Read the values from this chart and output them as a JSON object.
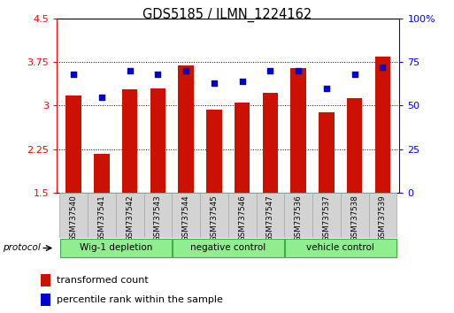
{
  "title": "GDS5185 / ILMN_1224162",
  "samples": [
    "GSM737540",
    "GSM737541",
    "GSM737542",
    "GSM737543",
    "GSM737544",
    "GSM737545",
    "GSM737546",
    "GSM737547",
    "GSM737536",
    "GSM737537",
    "GSM737538",
    "GSM737539"
  ],
  "transformed_count": [
    3.18,
    2.17,
    3.28,
    3.3,
    3.7,
    2.93,
    3.05,
    3.22,
    3.65,
    2.88,
    3.13,
    3.85
  ],
  "percentile_rank": [
    68,
    55,
    70,
    68,
    70,
    63,
    64,
    70,
    70,
    60,
    68,
    72
  ],
  "group_labels": [
    "Wig-1 depletion",
    "negative control",
    "vehicle control"
  ],
  "group_starts": [
    0,
    4,
    8
  ],
  "group_ends": [
    4,
    8,
    12
  ],
  "group_color": "#90ee90",
  "group_border_color": "#44aa44",
  "ylim_left": [
    1.5,
    4.5
  ],
  "ylim_right": [
    0,
    100
  ],
  "yticks_left": [
    1.5,
    2.25,
    3.0,
    3.75,
    4.5
  ],
  "yticks_right": [
    0,
    25,
    50,
    75,
    100
  ],
  "bar_color": "#cc1100",
  "dot_color": "#0000cc",
  "bar_width": 0.55,
  "sample_box_color": "#d3d3d3",
  "sample_box_edge": "#aaaaaa",
  "protocol_label": "protocol",
  "legend_items": [
    "transformed count",
    "percentile rank within the sample"
  ],
  "grid_lines": [
    2.25,
    3.0,
    3.75
  ]
}
